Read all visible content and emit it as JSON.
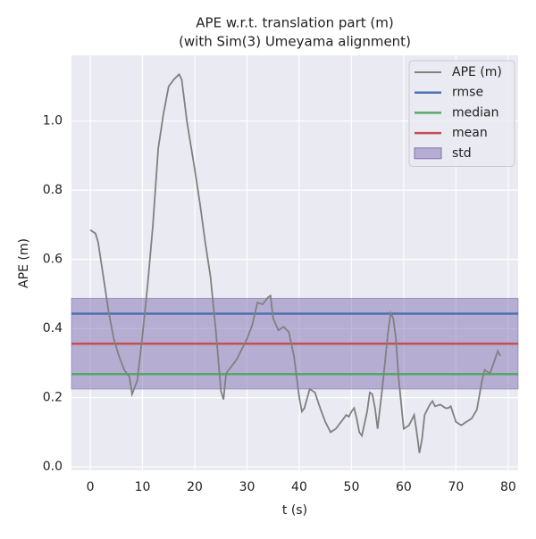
{
  "chart_data": {
    "type": "line",
    "title": "APE w.r.t. translation part (m)",
    "subtitle": "(with Sim(3) Umeyama alignment)",
    "xlabel": "t (s)",
    "ylabel": "APE (m)",
    "xlim": [
      -3.6,
      81.9
    ],
    "xticks": [
      0,
      10,
      20,
      30,
      40,
      50,
      60,
      70,
      80
    ],
    "ylim": [
      -0.01,
      1.19
    ],
    "yticks": [
      {
        "value": 0,
        "label": "0.0"
      },
      0.2,
      0.4,
      0.6,
      0.8,
      {
        "value": 1,
        "label": "1.0"
      }
    ],
    "grid": true,
    "legend": "upper right",
    "series": [
      {
        "name": "APE (m)",
        "color": "#808080",
        "x": [
          0,
          1,
          1.5,
          2.5,
          3.5,
          4.5,
          5.5,
          6.5,
          7.5,
          8,
          9,
          10,
          11,
          12,
          13,
          14,
          15,
          16,
          17,
          17.5,
          18.5,
          20,
          21,
          22,
          23,
          24,
          25,
          25.5,
          26,
          26.5,
          28,
          30,
          31,
          32,
          33,
          34,
          34.5,
          35,
          36,
          37,
          38,
          39,
          40,
          40.5,
          41,
          42,
          43,
          44,
          45,
          46,
          47,
          48,
          49,
          49.5,
          50,
          50.5,
          51,
          51.5,
          52,
          53,
          53.5,
          54,
          54.5,
          55,
          56,
          57,
          57.5,
          58,
          58.5,
          59,
          60,
          61,
          62,
          62.5,
          63,
          63.5,
          64,
          65,
          65.5,
          66,
          67,
          68,
          68.5,
          69,
          70,
          71,
          72,
          73,
          74,
          75,
          75.5,
          76.5,
          77,
          78,
          78.5
        ],
        "values": [
          0.685,
          0.675,
          0.65,
          0.55,
          0.45,
          0.37,
          0.32,
          0.28,
          0.26,
          0.21,
          0.25,
          0.38,
          0.53,
          0.7,
          0.92,
          1.02,
          1.1,
          1.12,
          1.135,
          1.12,
          1.0,
          0.86,
          0.76,
          0.65,
          0.55,
          0.4,
          0.22,
          0.195,
          0.27,
          0.28,
          0.31,
          0.37,
          0.41,
          0.475,
          0.47,
          0.49,
          0.495,
          0.43,
          0.395,
          0.405,
          0.39,
          0.32,
          0.2,
          0.16,
          0.17,
          0.225,
          0.215,
          0.17,
          0.13,
          0.1,
          0.11,
          0.13,
          0.15,
          0.145,
          0.16,
          0.17,
          0.14,
          0.1,
          0.09,
          0.16,
          0.215,
          0.21,
          0.17,
          0.11,
          0.24,
          0.39,
          0.445,
          0.43,
          0.37,
          0.26,
          0.11,
          0.12,
          0.15,
          0.1,
          0.04,
          0.08,
          0.15,
          0.18,
          0.19,
          0.175,
          0.18,
          0.17,
          0.17,
          0.175,
          0.13,
          0.12,
          0.13,
          0.14,
          0.165,
          0.25,
          0.28,
          0.27,
          0.29,
          0.335,
          0.32
        ]
      }
    ],
    "stats": [
      {
        "name": "rmse",
        "color": "#4c72b0",
        "value": 0.443
      },
      {
        "name": "median",
        "color": "#55a868",
        "value": 0.268
      },
      {
        "name": "mean",
        "color": "#c44e52",
        "value": 0.356
      }
    ],
    "std": {
      "name": "std",
      "color": "#8172b2",
      "value": 0.131
    }
  }
}
